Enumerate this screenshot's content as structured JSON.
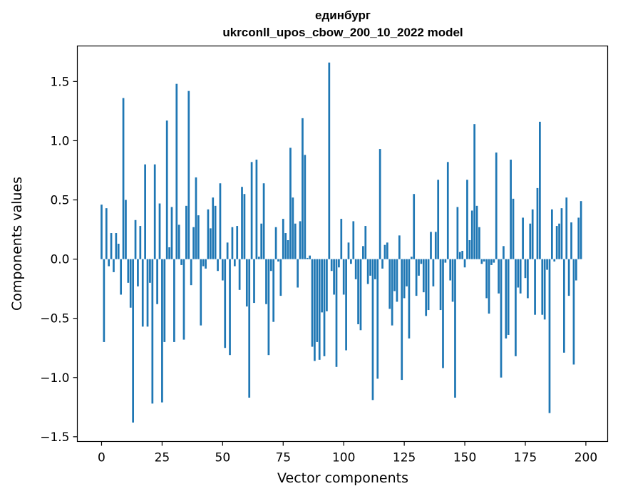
{
  "chart_data": {
    "type": "bar",
    "title_line1": "единбург",
    "title_line2": "ukrconll_upos_cbow_200_10_2022 model",
    "xlabel": "Vector components",
    "ylabel": "Components values",
    "xlim": [
      -10,
      209
    ],
    "ylim": [
      -1.54,
      1.8
    ],
    "xticks": [
      0,
      25,
      50,
      75,
      100,
      125,
      150,
      175,
      200
    ],
    "yticks": [
      -1.5,
      -1.0,
      -0.5,
      0.0,
      0.5,
      1.0,
      1.5
    ],
    "ytick_labels": [
      "−1.5",
      "−1.0",
      "−0.5",
      "0.0",
      "0.5",
      "1.0",
      "1.5"
    ],
    "bar_color": "#1f77b4",
    "values": [
      0.46,
      -0.7,
      0.43,
      -0.06,
      0.22,
      -0.11,
      0.22,
      0.13,
      -0.3,
      1.36,
      0.5,
      -0.2,
      -0.41,
      -1.38,
      0.33,
      -0.23,
      0.28,
      -0.57,
      0.8,
      -0.57,
      -0.2,
      -1.22,
      0.8,
      -0.38,
      0.47,
      -1.21,
      -0.7,
      1.17,
      0.1,
      0.44,
      -0.7,
      1.48,
      0.29,
      -0.05,
      -0.68,
      0.45,
      1.42,
      -0.22,
      0.27,
      0.69,
      0.37,
      -0.56,
      -0.06,
      -0.08,
      0.42,
      0.26,
      0.52,
      0.45,
      -0.1,
      0.64,
      -0.18,
      -0.75,
      0.14,
      -0.81,
      0.27,
      -0.06,
      0.28,
      -0.26,
      0.61,
      0.55,
      -0.4,
      -1.17,
      0.82,
      -0.37,
      0.84,
      0.02,
      0.3,
      0.64,
      -0.38,
      -0.81,
      -0.1,
      -0.53,
      0.27,
      -0.02,
      -0.31,
      0.34,
      0.22,
      0.16,
      0.94,
      0.52,
      0.3,
      -0.24,
      0.32,
      1.19,
      0.88,
      0.01,
      0.03,
      -0.74,
      -0.86,
      -0.7,
      -0.85,
      -0.45,
      -0.82,
      -0.44,
      1.66,
      -0.1,
      -0.3,
      -0.91,
      -0.07,
      0.34,
      -0.3,
      -0.77,
      0.14,
      -0.04,
      0.32,
      -0.17,
      -0.55,
      -0.6,
      0.11,
      0.28,
      -0.21,
      -0.14,
      -1.19,
      -0.17,
      -1.01,
      0.93,
      -0.08,
      0.12,
      0.14,
      -0.42,
      -0.56,
      -0.27,
      -0.36,
      0.2,
      -1.02,
      -0.33,
      -0.23,
      -0.67,
      0.02,
      0.55,
      -0.31,
      -0.14,
      -0.04,
      -0.28,
      -0.48,
      -0.43,
      0.23,
      -0.23,
      0.23,
      0.67,
      -0.43,
      -0.92,
      -0.03,
      0.82,
      -0.18,
      -0.36,
      -1.17,
      0.44,
      0.06,
      0.07,
      -0.07,
      0.67,
      0.16,
      0.41,
      1.14,
      0.45,
      0.27,
      -0.04,
      -0.02,
      -0.33,
      -0.46,
      -0.05,
      -0.03,
      0.9,
      -0.29,
      -1.0,
      0.11,
      -0.67,
      -0.64,
      0.84,
      0.51,
      -0.82,
      -0.24,
      -0.29,
      0.35,
      -0.16,
      -0.33,
      0.3,
      0.42,
      -0.47,
      0.6,
      1.16,
      -0.47,
      -0.51,
      -0.09,
      -1.3,
      0.42,
      -0.02,
      0.28,
      0.3,
      0.43,
      -0.79,
      0.52,
      -0.31,
      0.31,
      -0.89,
      -0.18,
      0.35,
      0.49
    ]
  }
}
